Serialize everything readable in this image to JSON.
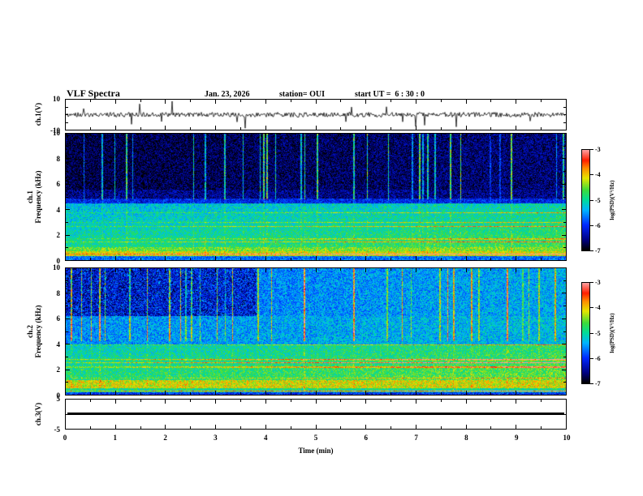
{
  "header": {
    "title": "VLF Spectra",
    "date": "Jan. 23, 2026",
    "station": "station= OUI",
    "start_ut": "start UT =  6 : 30 : 0"
  },
  "xaxis": {
    "label": "Time (min)",
    "range": [
      0,
      10
    ],
    "ticks": [
      0,
      1,
      2,
      3,
      4,
      5,
      6,
      7,
      8,
      9,
      10
    ]
  },
  "colorbar": {
    "label": "log(PSD)(V²/Hz)",
    "ticks": [
      -3,
      -4,
      -5,
      -6,
      -7
    ],
    "range": [
      -7,
      -3
    ],
    "stops": [
      [
        0.0,
        "#000000"
      ],
      [
        0.1,
        "#000080"
      ],
      [
        0.25,
        "#0028ff"
      ],
      [
        0.4,
        "#00b4ff"
      ],
      [
        0.5,
        "#00dc9b"
      ],
      [
        0.6,
        "#3cdc3c"
      ],
      [
        0.72,
        "#e6e600"
      ],
      [
        0.82,
        "#ff8c00"
      ],
      [
        0.9,
        "#ff1e00"
      ],
      [
        1.0,
        "#ff9c9c"
      ]
    ]
  },
  "chart_data": [
    {
      "id": "ch1-voltage",
      "type": "line",
      "ylabel": "ch.1(V)",
      "ylim": [
        -10,
        10
      ],
      "yticks": [
        10,
        -10
      ],
      "x_range": [
        0,
        10
      ],
      "summary": "Noisy waveform centred on 0 V with about ±1 V jitter and sporadic impulsive spikes reaching roughly ±6 V over the full 10 minutes"
    },
    {
      "id": "ch1-spectrogram",
      "type": "heatmap",
      "ylabel_lines": [
        "ch.1",
        "Frequency (kHz)"
      ],
      "ylim": [
        0,
        10
      ],
      "yticks": [
        0,
        2,
        4,
        6,
        8,
        10
      ],
      "zlim": [
        -7,
        -3
      ],
      "summary": "5.5-10 kHz mostly near -7 (black/navy) crossed by vertical broadband impulse streaks; dark blue band near 5 kHz; diffuse green noise around -5.3 from 1-4.5 kHz brightening toward the right with thin yellow/red horizontal lines; intense yellow-red band near 0.3-1 kHz around -4"
    },
    {
      "id": "ch2-spectrogram",
      "type": "heatmap",
      "ylabel_lines": [
        "ch.2",
        "Frequency (kHz)"
      ],
      "ylim": [
        0,
        10
      ],
      "yticks": [
        0,
        2,
        4,
        6,
        8,
        10
      ],
      "zlim": [
        -7,
        -3
      ],
      "summary": "Overall cyan-green noise near -5.5 with vertical impulse streaks over the full band; darker blue patches at upper left; many yellow/red horizontal lines between 1-4 kHz strongest in the right half (red lines near 2.5-3 kHz); bright yellow band near 0.5-1 kHz around -4"
    },
    {
      "id": "ch3-voltage",
      "type": "line",
      "ylabel": "ch.3(V)",
      "ylim": [
        -5,
        5
      ],
      "yticks": [
        5,
        -5
      ],
      "x_range": [
        0,
        10
      ],
      "summary": "Flat trace at 0 V for the entire record"
    }
  ]
}
